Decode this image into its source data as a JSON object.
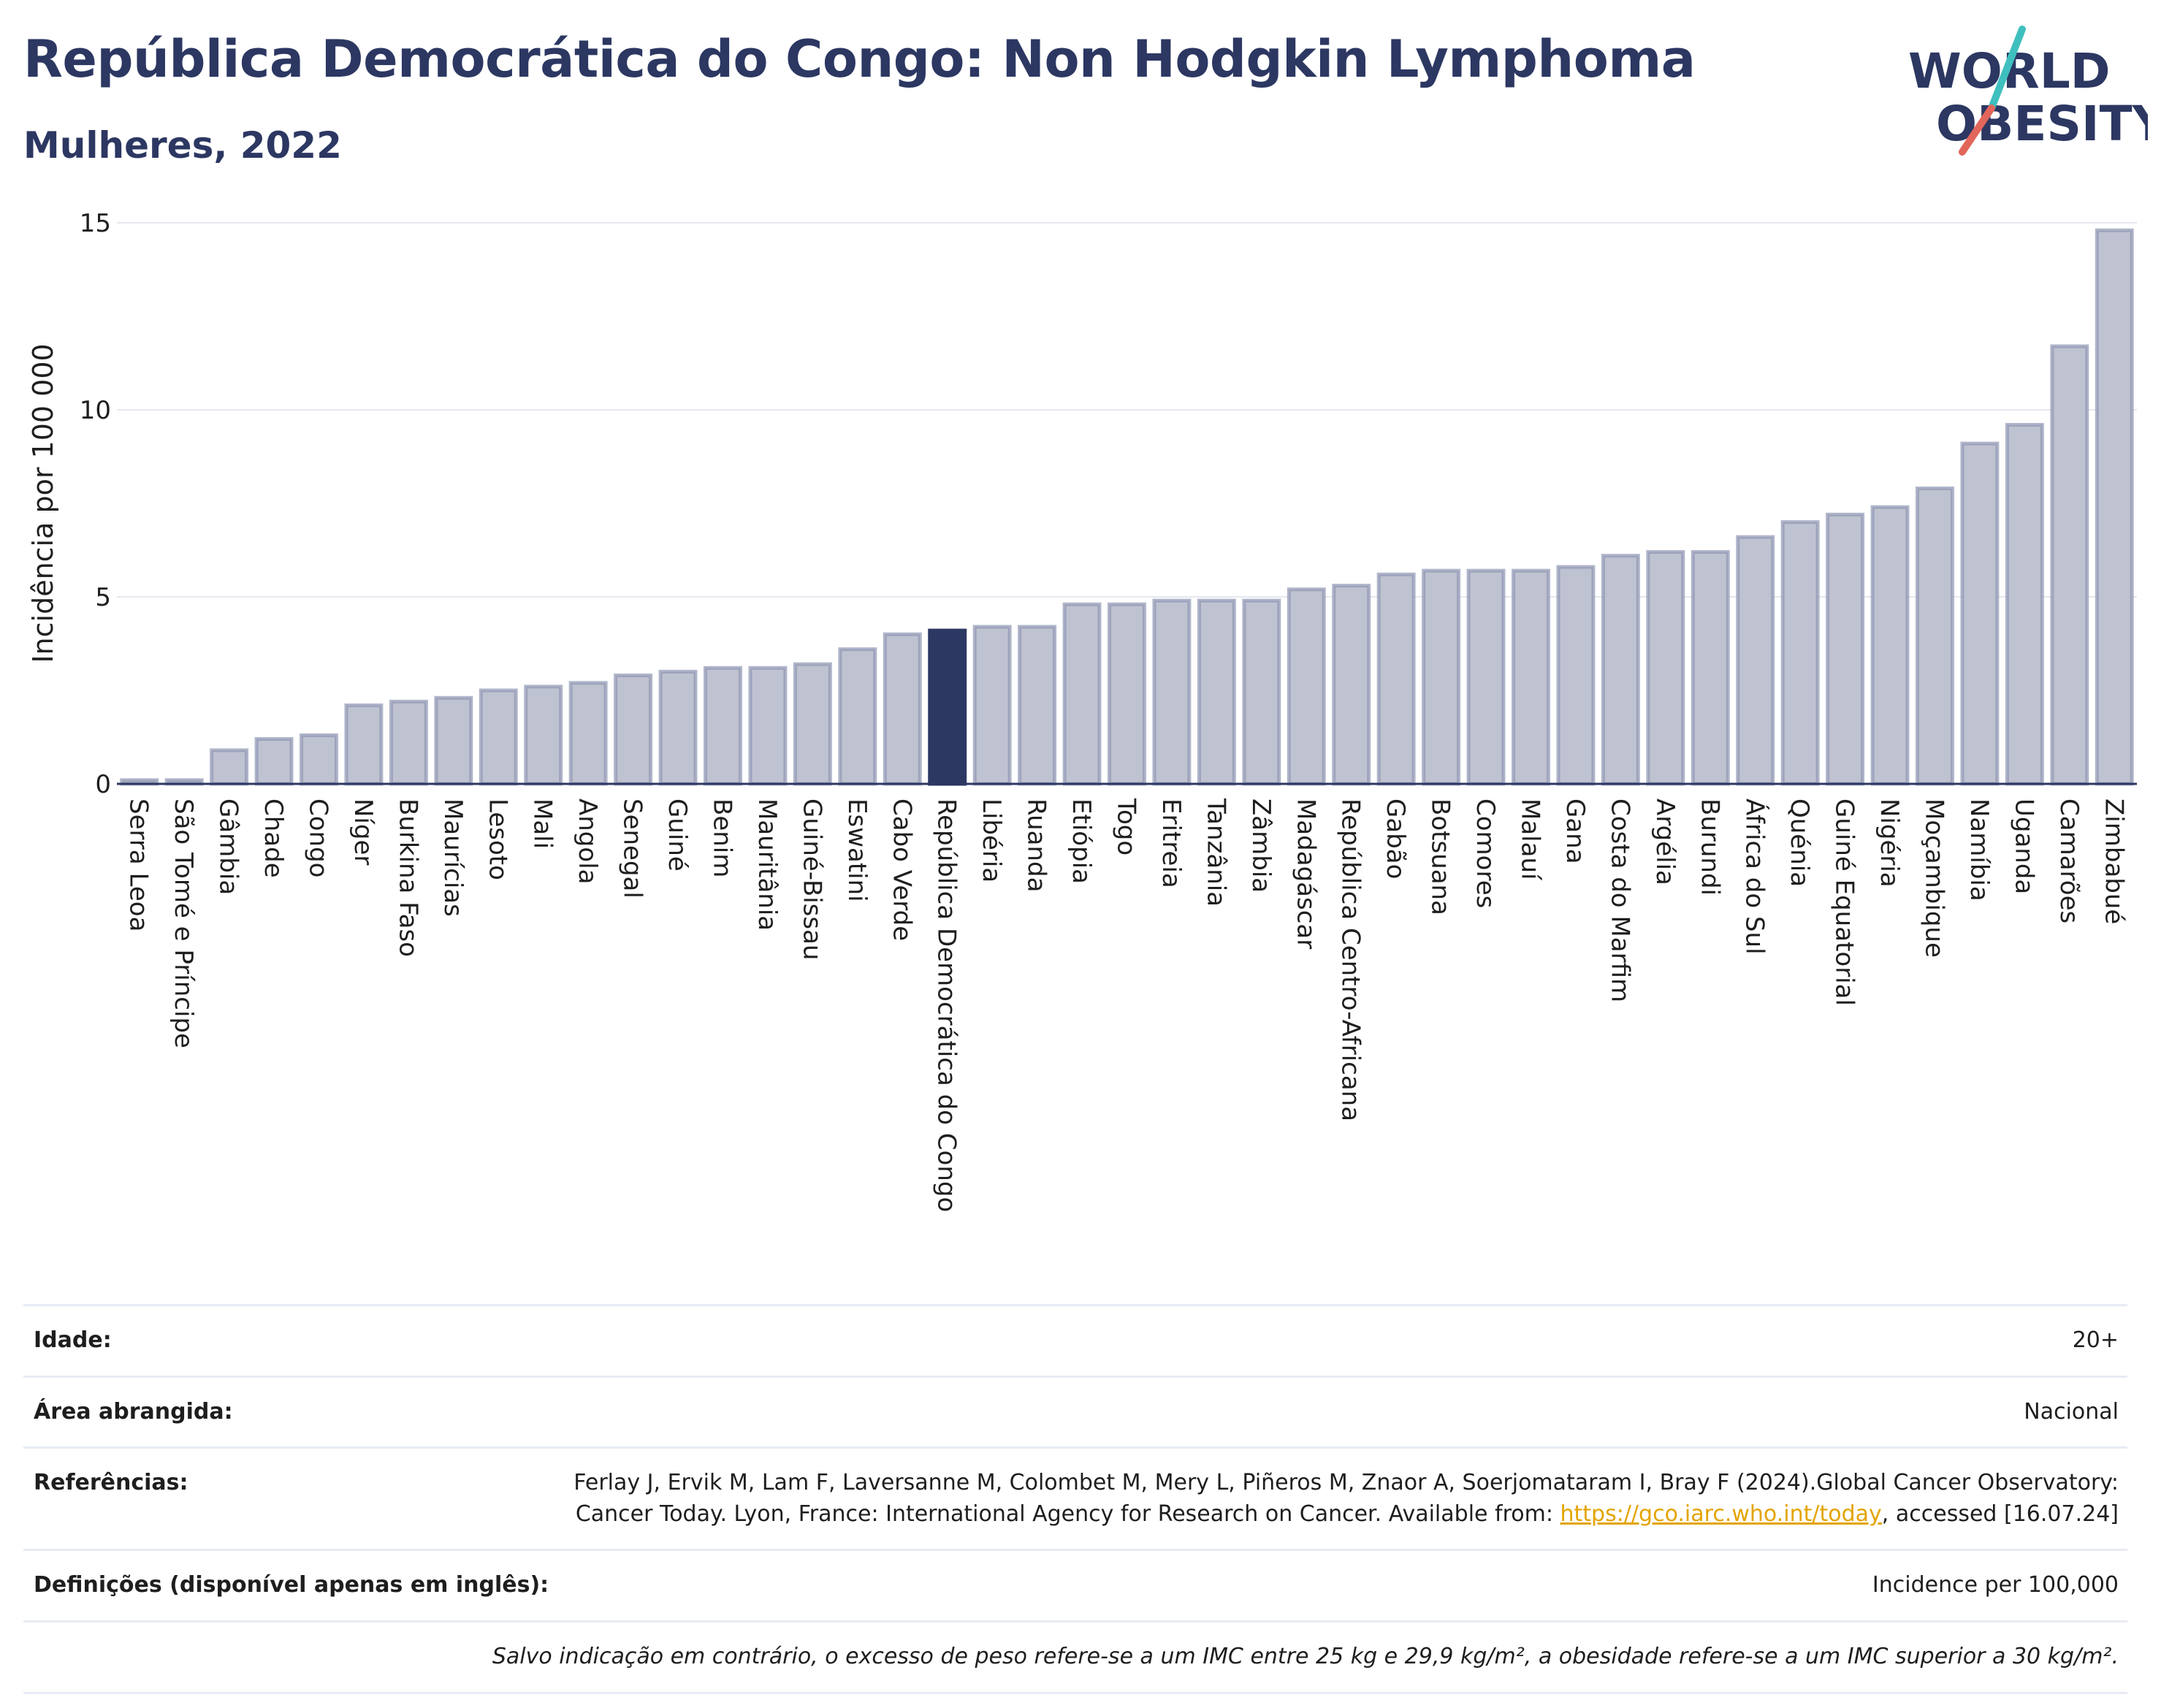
{
  "title": "República Democrática do Congo: Non Hodgkin Lymphoma",
  "subtitle": "Mulheres, 2022",
  "logo": {
    "line1": "WORLD",
    "line2": "OBESITY"
  },
  "colors": {
    "bar": "#bfc2d0",
    "bar_border": "#8f96b3",
    "highlight": "#2c3762",
    "title": "#2c3762",
    "link": "#e3a400",
    "accent_teal": "#3fbfbf",
    "accent_red": "#e2665a"
  },
  "chart_data": {
    "type": "bar",
    "ylabel": "Incidência por 100 000",
    "ylim": [
      0,
      15
    ],
    "yticks": [
      0,
      5,
      10,
      15
    ],
    "grid": true,
    "highlight": "República Democrática do Congo",
    "categories": [
      "Serra Leoa",
      "São Tomé e Príncipe",
      "Gâmbia",
      "Chade",
      "Congo",
      "Níger",
      "Burkina Faso",
      "Maurícias",
      "Lesoto",
      "Mali",
      "Angola",
      "Senegal",
      "Guiné",
      "Benim",
      "Mauritânia",
      "Guiné-Bissau",
      "Eswatini",
      "Cabo Verde",
      "República Democrática do Congo",
      "Libéria",
      "Ruanda",
      "Etiópia",
      "Togo",
      "Eritreia",
      "Tanzânia",
      "Zâmbia",
      "Madagáscar",
      "República Centro-Africana",
      "Gabão",
      "Botsuana",
      "Comores",
      "Malauí",
      "Gana",
      "Costa do Marfim",
      "Argélia",
      "Burundi",
      "África do Sul",
      "Quénia",
      "Guiné Equatorial",
      "Nigéria",
      "Moçambique",
      "Namíbia",
      "Uganda",
      "Camarões",
      "Zimbabué"
    ],
    "values": [
      0.1,
      0.1,
      0.9,
      1.2,
      1.3,
      2.1,
      2.2,
      2.3,
      2.5,
      2.6,
      2.7,
      2.9,
      3.0,
      3.1,
      3.1,
      3.2,
      3.6,
      4.0,
      4.1,
      4.2,
      4.2,
      4.8,
      4.8,
      4.9,
      4.9,
      4.9,
      5.2,
      5.3,
      5.6,
      5.7,
      5.7,
      5.7,
      5.8,
      6.1,
      6.2,
      6.2,
      6.6,
      7.0,
      7.2,
      7.4,
      7.9,
      9.1,
      9.6,
      11.7,
      14.8
    ]
  },
  "info": {
    "age_label": "Idade:",
    "age_value": "20+",
    "area_label": "Área abrangida:",
    "area_value": "Nacional",
    "refs_label": "Referências:",
    "refs_text": "Ferlay J, Ervik M, Lam F, Laversanne M, Colombet M, Mery L, Piñeros M, Znaor A, Soerjomataram I, Bray F (2024).Global Cancer Observatory: Cancer Today. Lyon, France: International Agency for Research on Cancer. Available from:",
    "refs_link": "https://gco.iarc.who.int/today",
    "refs_tail": ", accessed [16.07.24]",
    "defs_label": "Definições (disponível apenas em inglês):",
    "defs_value": "Incidence per 100,000",
    "note": "Salvo indicação em contrário, o excesso de peso refere-se a um IMC entre 25 kg e 29,9 kg/m², a obesidade refere-se a um IMC superior a 30 kg/m²."
  }
}
